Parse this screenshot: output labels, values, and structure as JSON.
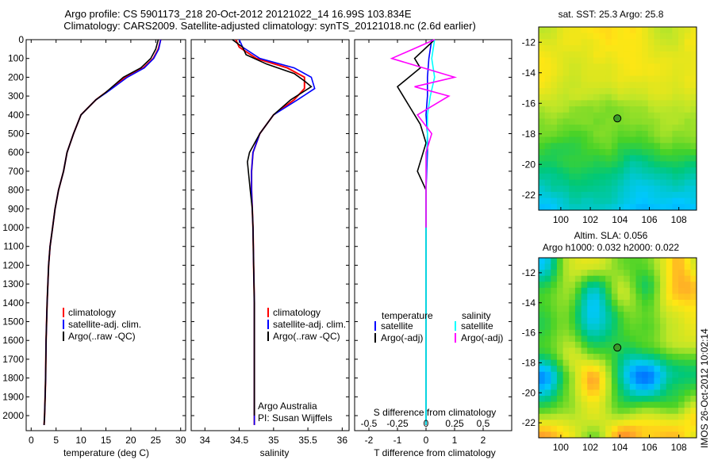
{
  "header": {
    "line1": "Argo profile: CS 5901173_218 20-Oct-2012 20121022_14 16.99S 103.834E",
    "line2": "Climatology: CARS2009. Satellite-adjusted climatology: synTS_20121018.nc (2.6d earlier)"
  },
  "watermark": "IMOS 26-Oct-2012 10:02:14",
  "chart_data": [
    {
      "type": "line",
      "name": "temperature",
      "xlabel": "temperature (deg C)",
      "ylabel": "",
      "xlim": [
        -1,
        31
      ],
      "ylim": [
        2080,
        0
      ],
      "xticks": [
        0,
        5,
        10,
        15,
        20,
        25,
        30
      ],
      "yticks": [
        0,
        100,
        200,
        300,
        400,
        500,
        600,
        700,
        800,
        900,
        1000,
        1100,
        1200,
        1300,
        1400,
        1500,
        1600,
        1700,
        1800,
        1900,
        2000
      ],
      "legend": [
        "climatology",
        "satellite-adj. clim.",
        "Argo(..raw -QC)"
      ],
      "series": [
        {
          "name": "climatology",
          "color": "#ff0000",
          "x": [
            26,
            25.5,
            24.5,
            22.5,
            19,
            15,
            13,
            10,
            8.5,
            7.2,
            6.5,
            5.5,
            4.8,
            4.3,
            3.8,
            3.5,
            3.2,
            3.0,
            2.9,
            2.8,
            2.7,
            2.6
          ],
          "y": [
            0,
            50,
            100,
            150,
            200,
            280,
            320,
            400,
            500,
            600,
            700,
            800,
            900,
            1000,
            1100,
            1200,
            1400,
            1600,
            1800,
            1900,
            2000,
            2050
          ]
        },
        {
          "name": "satellite-adj. clim.",
          "color": "#0000ff",
          "x": [
            26,
            25.6,
            24.6,
            22.7,
            19.3,
            15.2,
            13,
            10,
            8.5,
            7.2,
            6.5,
            5.5,
            4.8,
            4.3,
            3.8,
            3.5,
            3.2,
            3.0,
            2.9,
            2.8,
            2.7,
            2.6
          ],
          "y": [
            0,
            50,
            100,
            150,
            200,
            280,
            320,
            400,
            500,
            600,
            700,
            800,
            900,
            1000,
            1100,
            1200,
            1400,
            1600,
            1800,
            1900,
            2000,
            2050
          ]
        },
        {
          "name": "Argo(..raw -QC)",
          "color": "#000000",
          "x": [
            25.5,
            25,
            24,
            22,
            18.5,
            15,
            13,
            10,
            8.5,
            7.2,
            6.5,
            5.5,
            4.8,
            4.3,
            3.8,
            3.5,
            3.2,
            3.0,
            2.9,
            2.8,
            2.7,
            2.6
          ],
          "y": [
            0,
            50,
            100,
            150,
            200,
            280,
            320,
            400,
            500,
            600,
            700,
            800,
            900,
            1000,
            1100,
            1200,
            1400,
            1600,
            1800,
            1900,
            2000,
            2050
          ]
        }
      ]
    },
    {
      "type": "line",
      "name": "salinity",
      "xlabel": "salinity",
      "ylabel": "",
      "xlim": [
        33.8,
        36.1
      ],
      "ylim": [
        2080,
        0
      ],
      "xticks": [
        34,
        34.5,
        35,
        35.5,
        36
      ],
      "legend": [
        "climatology",
        "satellite-adj. clim.",
        "Argo(..raw -QC)"
      ],
      "annotations": [
        "Argo Australia",
        "PI: Susan Wijffels"
      ],
      "series": [
        {
          "name": "climatology",
          "color": "#ff0000",
          "x": [
            34.45,
            34.5,
            34.75,
            35.2,
            35.45,
            35.45,
            35.3,
            35.0,
            34.8,
            34.7,
            34.68,
            34.68,
            34.69,
            34.7,
            34.71,
            34.72,
            34.72,
            34.72,
            34.72,
            34.72
          ],
          "y": [
            0,
            40,
            100,
            150,
            200,
            260,
            320,
            400,
            500,
            600,
            700,
            800,
            900,
            1000,
            1200,
            1400,
            1600,
            1800,
            2000,
            2050
          ]
        },
        {
          "name": "satellite-adj. clim.",
          "color": "#0000ff",
          "x": [
            34.5,
            34.55,
            34.8,
            35.3,
            35.55,
            35.6,
            35.35,
            35.0,
            34.8,
            34.7,
            34.68,
            34.68,
            34.69,
            34.7,
            34.71,
            34.72,
            34.72,
            34.72,
            34.72,
            34.72
          ],
          "y": [
            0,
            40,
            100,
            150,
            200,
            260,
            320,
            400,
            500,
            600,
            700,
            800,
            900,
            1000,
            1200,
            1400,
            1600,
            1800,
            2000,
            2050
          ]
        },
        {
          "name": "Argo(..raw -QC)",
          "color": "#000000",
          "x": [
            34.4,
            34.55,
            34.6,
            34.9,
            35.3,
            35.45,
            35.55,
            35.25,
            35.0,
            34.8,
            34.65,
            34.62,
            34.66,
            34.69,
            34.7,
            34.71,
            34.72,
            34.72,
            34.72,
            34.72
          ],
          "y": [
            0,
            40,
            80,
            130,
            180,
            220,
            250,
            320,
            400,
            500,
            600,
            650,
            800,
            900,
            1000,
            1200,
            1400,
            1600,
            1800,
            2000
          ]
        }
      ]
    },
    {
      "type": "line",
      "name": "difference",
      "xlabel": "T difference from climatology",
      "title": "S difference from climatology",
      "ylabel": "",
      "xlim": [
        -2.5,
        3
      ],
      "ylim": [
        2080,
        0
      ],
      "xticks_bottom": [
        -2,
        -1,
        0,
        1,
        2
      ],
      "xticks_top_labels": [
        "-0.5",
        "-0.25",
        "0",
        "0.25",
        "0.5"
      ],
      "legend_left_title": "temperature",
      "legend_right_title": "salinity",
      "legend": [
        "satellite",
        "Argo(-adj)",
        "satellite",
        "Argo(-adj)"
      ],
      "series": [
        {
          "name": "satellite",
          "group": "temperature",
          "color": "#0000ff",
          "x": [
            0.2,
            0.1,
            0.05,
            0.05,
            0,
            0.05,
            0.05,
            0,
            0,
            0,
            0
          ],
          "y": [
            0,
            100,
            200,
            300,
            400,
            500,
            600,
            800,
            1000,
            1500,
            2050
          ]
        },
        {
          "name": "Argo(-adj)",
          "group": "temperature",
          "color": "#000000",
          "x": [
            0.3,
            -0.4,
            -0.2,
            -1.0,
            -0.6,
            -0.2,
            0,
            -0.3,
            0,
            0,
            0,
            0
          ],
          "y": [
            0,
            100,
            150,
            250,
            350,
            450,
            550,
            700,
            800,
            1000,
            1500,
            2050
          ]
        },
        {
          "name": "satellite",
          "group": "salinity",
          "color": "#00ffff",
          "x": [
            0.3,
            0.2,
            0.3,
            0.15,
            0.05,
            0.05,
            0.02,
            0,
            0,
            0
          ],
          "y": [
            0,
            100,
            200,
            300,
            400,
            500,
            600,
            800,
            1200,
            2050
          ]
        },
        {
          "name": "Argo(-adj)",
          "group": "salinity",
          "color": "#ff00ff",
          "x": [
            0.3,
            -1.2,
            1.0,
            -0.4,
            0.8,
            -0.3,
            0.2,
            0,
            0,
            0
          ],
          "y": [
            0,
            100,
            200,
            250,
            300,
            400,
            500,
            600,
            800,
            1000
          ]
        }
      ]
    },
    {
      "type": "heatmap",
      "name": "sst-map",
      "title": "sat. SST: 25.3 Argo: 25.8",
      "xticks": [
        100,
        102,
        104,
        106,
        108
      ],
      "yticks": [
        -12,
        -14,
        -16,
        -18,
        -20,
        -22
      ],
      "xlim": [
        98.5,
        109.2
      ],
      "ylim": [
        -23,
        -11
      ],
      "marker": {
        "lon": 103.834,
        "lat": -16.99
      }
    },
    {
      "type": "heatmap",
      "name": "sla-map",
      "title": "Altim. SLA: 0.056",
      "subtitle": "Argo h1000: 0.032 h2000: 0.022",
      "xticks": [
        100,
        102,
        104,
        106,
        108
      ],
      "yticks": [
        -12,
        -14,
        -16,
        -18,
        -20,
        -22
      ],
      "xlim": [
        98.5,
        109.2
      ],
      "ylim": [
        -23,
        -11
      ],
      "marker": {
        "lon": 103.834,
        "lat": -16.99
      }
    }
  ]
}
